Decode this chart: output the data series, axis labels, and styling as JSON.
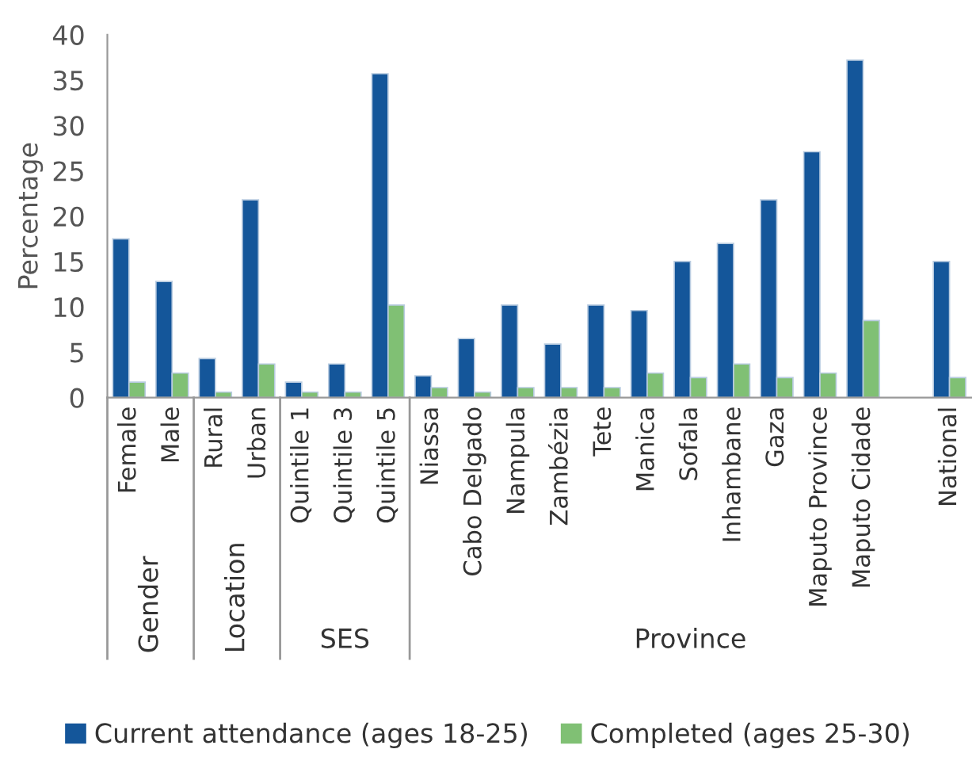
{
  "chart_data": {
    "type": "bar",
    "ylabel": "Percentage",
    "categories": [
      "Female",
      "Male",
      "Rural",
      "Urban",
      "Quintile 1",
      "Quintile 3",
      "Quintile 5",
      "Niassa",
      "Cabo Delgado",
      "Nampula",
      "Zambézia",
      "Tete",
      "Manica",
      "Sofala",
      "Inhambane",
      "Gaza",
      "Maputo Province",
      "Maputo Cidade",
      null,
      "National"
    ],
    "series": [
      {
        "name": "Current attendance (ages 18-25)",
        "color": "#14569a",
        "values": [
          17.5,
          12.8,
          4.3,
          21.8,
          1.7,
          3.7,
          35.7,
          2.4,
          6.5,
          10.2,
          5.9,
          10.2,
          9.6,
          15,
          17,
          21.8,
          27.1,
          37.2,
          null,
          15
        ]
      },
      {
        "name": "Completed (ages 25-30)",
        "color": "#80c074",
        "values": [
          1.7,
          2.7,
          0.6,
          3.7,
          0.6,
          0.6,
          10.2,
          1.1,
          0.6,
          1.1,
          1.1,
          1.1,
          2.7,
          2.2,
          3.7,
          2.2,
          2.7,
          8.5,
          null,
          2.2
        ]
      }
    ],
    "ylim": [
      0,
      40
    ],
    "yticks": [
      0,
      5,
      10,
      15,
      20,
      25,
      30,
      35,
      40
    ],
    "annotations": [
      "Gender",
      "Location",
      "SES",
      "Province"
    ],
    "legend": "bottom",
    "grid": false
  }
}
